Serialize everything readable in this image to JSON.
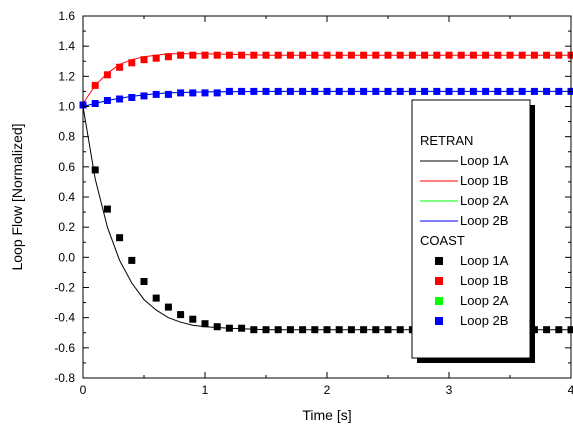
{
  "chart_data": {
    "type": "line",
    "xlabel": "Time [s]",
    "ylabel": "Loop Flow [Normalized]",
    "xlim": [
      0,
      4
    ],
    "ylim": [
      -0.8,
      1.6
    ],
    "xticks": [
      "0",
      "1",
      "2",
      "3",
      "4"
    ],
    "yticks": [
      "-0.8",
      "-0.6",
      "-0.4",
      "-0.2",
      "0.0",
      "0.2",
      "0.4",
      "0.6",
      "0.8",
      "1.0",
      "1.2",
      "1.4",
      "1.6"
    ],
    "grid": false,
    "legend_position": "right",
    "legend": {
      "groups": [
        {
          "title": "RETRAN",
          "style": "line",
          "entries": [
            {
              "label": "Loop 1A",
              "color": "#000000"
            },
            {
              "label": "Loop 1B",
              "color": "#ff0000"
            },
            {
              "label": "Loop 2A",
              "color": "#00ff00"
            },
            {
              "label": "Loop 2B",
              "color": "#0000ff"
            }
          ]
        },
        {
          "title": "COAST",
          "style": "marker",
          "entries": [
            {
              "label": "Loop 1A",
              "color": "#000000"
            },
            {
              "label": "Loop 1B",
              "color": "#ff0000"
            },
            {
              "label": "Loop 2A",
              "color": "#00ff00"
            },
            {
              "label": "Loop 2B",
              "color": "#0000ff"
            }
          ]
        }
      ]
    },
    "series": [
      {
        "group": "RETRAN",
        "name": "Loop 1A",
        "style": "line",
        "color": "#000000",
        "x": [
          0,
          0.1,
          0.2,
          0.3,
          0.4,
          0.5,
          0.6,
          0.7,
          0.8,
          0.9,
          1.0,
          1.2,
          1.5,
          2.0,
          2.5,
          3.0,
          3.5,
          4.0
        ],
        "y": [
          1.0,
          0.52,
          0.2,
          -0.02,
          -0.17,
          -0.28,
          -0.35,
          -0.4,
          -0.43,
          -0.45,
          -0.46,
          -0.47,
          -0.48,
          -0.48,
          -0.48,
          -0.48,
          -0.48,
          -0.48
        ]
      },
      {
        "group": "RETRAN",
        "name": "Loop 1B",
        "style": "line",
        "color": "#ff0000",
        "x": [
          0,
          0.1,
          0.2,
          0.3,
          0.4,
          0.5,
          0.6,
          0.7,
          0.8,
          1.0,
          1.5,
          2.0,
          2.5,
          3.0,
          3.5,
          4.0
        ],
        "y": [
          1.02,
          1.14,
          1.22,
          1.28,
          1.31,
          1.33,
          1.34,
          1.35,
          1.35,
          1.35,
          1.34,
          1.34,
          1.34,
          1.34,
          1.34,
          1.34
        ]
      },
      {
        "group": "RETRAN",
        "name": "Loop 2A",
        "style": "line",
        "color": "#00ff00",
        "x": [
          0,
          0.1,
          0.2,
          0.3,
          0.4,
          0.5,
          0.6,
          0.7,
          0.8,
          1.0,
          1.5,
          2.0,
          2.5,
          3.0,
          3.5,
          4.0
        ],
        "y": [
          1.0,
          1.02,
          1.04,
          1.055,
          1.067,
          1.077,
          1.085,
          1.09,
          1.093,
          1.097,
          1.1,
          1.1,
          1.1,
          1.1,
          1.1,
          1.1
        ]
      },
      {
        "group": "RETRAN",
        "name": "Loop 2B",
        "style": "line",
        "color": "#0000ff",
        "x": [
          0,
          0.1,
          0.2,
          0.3,
          0.4,
          0.5,
          0.6,
          0.7,
          0.8,
          1.0,
          1.5,
          2.0,
          2.5,
          3.0,
          3.5,
          4.0
        ],
        "y": [
          1.0,
          1.02,
          1.04,
          1.055,
          1.067,
          1.077,
          1.085,
          1.09,
          1.093,
          1.097,
          1.1,
          1.1,
          1.1,
          1.1,
          1.1,
          1.1
        ]
      },
      {
        "group": "COAST",
        "name": "Loop 1A",
        "style": "marker",
        "color": "#000000",
        "x": [
          0.1,
          0.2,
          0.3,
          0.4,
          0.5,
          0.6,
          0.7,
          0.8,
          0.9,
          1.0,
          1.1,
          1.2,
          1.3,
          1.4,
          1.5,
          1.6,
          1.7,
          1.8,
          1.9,
          2.0,
          2.1,
          2.2,
          2.3,
          2.4,
          2.5,
          2.6,
          2.7,
          2.8,
          2.9,
          3.0,
          3.1,
          3.2,
          3.3,
          3.4,
          3.5,
          3.6,
          3.7,
          3.8,
          3.9,
          4.0
        ],
        "y": [
          0.58,
          0.32,
          0.13,
          -0.02,
          -0.16,
          -0.27,
          -0.33,
          -0.38,
          -0.41,
          -0.44,
          -0.46,
          -0.47,
          -0.47,
          -0.48,
          -0.48,
          -0.48,
          -0.48,
          -0.48,
          -0.48,
          -0.48,
          -0.48,
          -0.48,
          -0.48,
          -0.48,
          -0.48,
          -0.48,
          -0.48,
          -0.48,
          -0.48,
          -0.48,
          -0.48,
          -0.48,
          -0.48,
          -0.48,
          -0.48,
          -0.48,
          -0.48,
          -0.48,
          -0.48,
          -0.48
        ]
      },
      {
        "group": "COAST",
        "name": "Loop 1B",
        "style": "marker",
        "color": "#ff0000",
        "x": [
          0.1,
          0.2,
          0.3,
          0.4,
          0.5,
          0.6,
          0.7,
          0.8,
          0.9,
          1.0,
          1.1,
          1.2,
          1.3,
          1.4,
          1.5,
          1.6,
          1.7,
          1.8,
          1.9,
          2.0,
          2.1,
          2.2,
          2.3,
          2.4,
          2.5,
          2.6,
          2.7,
          2.8,
          2.9,
          3.0,
          3.1,
          3.2,
          3.3,
          3.4,
          3.5,
          3.6,
          3.7,
          3.8,
          3.9,
          4.0
        ],
        "y": [
          1.14,
          1.21,
          1.26,
          1.29,
          1.31,
          1.32,
          1.33,
          1.34,
          1.34,
          1.34,
          1.34,
          1.34,
          1.34,
          1.34,
          1.34,
          1.34,
          1.34,
          1.34,
          1.34,
          1.34,
          1.34,
          1.34,
          1.34,
          1.34,
          1.34,
          1.34,
          1.34,
          1.34,
          1.34,
          1.34,
          1.34,
          1.34,
          1.34,
          1.34,
          1.34,
          1.34,
          1.34,
          1.34,
          1.34,
          1.34
        ]
      },
      {
        "group": "COAST",
        "name": "Loop 2B",
        "style": "marker",
        "color": "#0000ff",
        "x": [
          0.0,
          0.1,
          0.2,
          0.3,
          0.4,
          0.5,
          0.6,
          0.7,
          0.8,
          0.9,
          1.0,
          1.1,
          1.2,
          1.3,
          1.4,
          1.5,
          1.6,
          1.7,
          1.8,
          1.9,
          2.0,
          2.1,
          2.2,
          2.3,
          2.4,
          2.5,
          2.6,
          2.7,
          2.8,
          2.9,
          3.0,
          3.1,
          3.2,
          3.3,
          3.4,
          3.5,
          3.6,
          3.7,
          3.8,
          3.9,
          4.0
        ],
        "y": [
          1.01,
          1.02,
          1.04,
          1.05,
          1.06,
          1.07,
          1.08,
          1.08,
          1.09,
          1.09,
          1.09,
          1.09,
          1.1,
          1.1,
          1.1,
          1.1,
          1.1,
          1.1,
          1.1,
          1.1,
          1.1,
          1.1,
          1.1,
          1.1,
          1.1,
          1.1,
          1.1,
          1.1,
          1.1,
          1.1,
          1.1,
          1.1,
          1.1,
          1.1,
          1.1,
          1.1,
          1.1,
          1.1,
          1.1,
          1.1,
          1.1
        ]
      }
    ]
  }
}
